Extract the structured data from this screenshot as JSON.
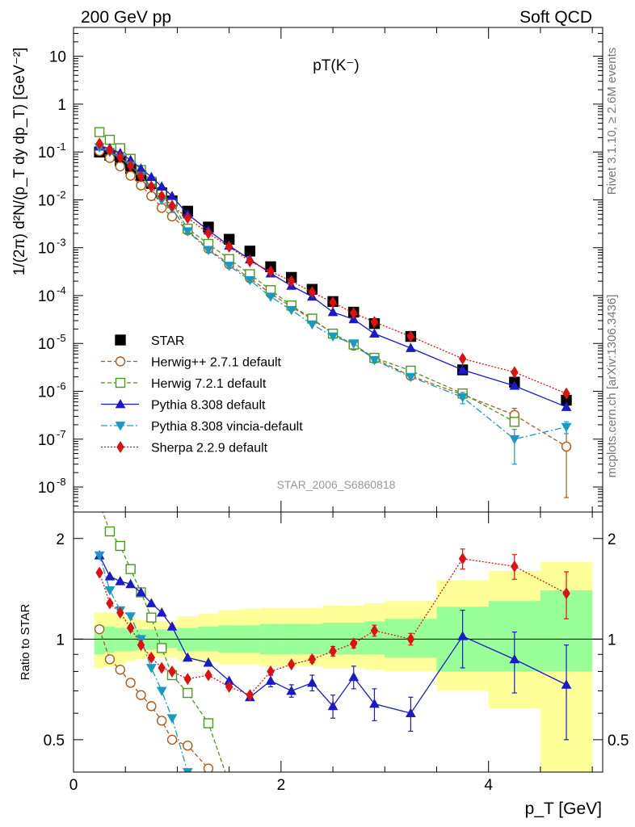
{
  "header": {
    "left": "200 GeV pp",
    "right": "Soft QCD",
    "rivet": "Rivet 3.1.10, ≥ 2.6M events",
    "mcplots": "mcplots.cern.ch [arXiv:1306.3436]",
    "analysis": "STAR_2006_S6860818"
  },
  "chart_data": [
    {
      "type": "scatter",
      "title": "pT(K⁻)",
      "xlabel": "p_T [GeV]",
      "ylabel": "1/(2π) d²N/(p_T dy dp_T) [GeV⁻²]",
      "yscale": "log",
      "xlim": [
        0,
        5.1
      ],
      "ylim": [
        3e-09,
        40
      ],
      "grid": false,
      "legend_position": "bottom-left",
      "x": [
        0.25,
        0.35,
        0.45,
        0.55,
        0.65,
        0.75,
        0.85,
        0.95,
        1.1,
        1.3,
        1.5,
        1.7,
        1.9,
        2.1,
        2.3,
        2.5,
        2.7,
        2.9,
        3.25,
        3.75,
        4.25,
        4.75
      ],
      "series": [
        {
          "name": "STAR",
          "color": "#000000",
          "marker": "square-filled",
          "values": [
            0.1,
            0.085,
            0.065,
            0.045,
            0.032,
            0.022,
            0.014,
            0.0095,
            0.0058,
            0.0027,
            0.0015,
            0.00085,
            0.0004,
            0.00024,
            0.000135,
            7.5e-05,
            4.5e-05,
            2.6e-05,
            1.4e-05,
            2.8e-06,
            1.55e-06,
            6.5e-07
          ]
        },
        {
          "name": "Herwig++ 2.7.1 default",
          "color": "#b05a1a",
          "marker": "circle-open",
          "dash": "5,3",
          "values": [
            0.105,
            0.075,
            0.05,
            0.032,
            0.02,
            0.012,
            0.0068,
            0.0045,
            0.0023,
            0.00095,
            0.00045,
            0.00023,
            0.00011,
            5.8e-05,
            3.2e-05,
            1.6e-05,
            9e-06,
            4.8e-06,
            2.1e-06,
            8.5e-07,
            3.2e-07,
            7e-08
          ],
          "err_low": [
            0,
            0,
            0,
            0,
            0,
            0,
            0,
            0,
            0,
            0,
            0,
            0,
            0,
            0,
            0,
            0,
            0,
            0,
            0,
            1.5e-07,
            8e-08,
            6.4e-08
          ],
          "err_high": [
            0,
            0,
            0,
            0,
            0,
            0,
            0,
            0,
            0,
            0,
            0,
            0,
            0,
            0,
            0,
            0,
            0,
            0,
            0,
            1.5e-07,
            1.2e-07,
            1.2e-07
          ]
        },
        {
          "name": "Herwig 7.2.1 default",
          "color": "#4c9a1c",
          "marker": "square-open",
          "dash": "5,3",
          "values": [
            0.26,
            0.18,
            0.12,
            0.072,
            0.042,
            0.024,
            0.013,
            0.0085,
            0.0025,
            0.0012,
            0.00058,
            0.00028,
            0.00013,
            6.2e-05,
            3.3e-05,
            1.6e-05,
            9.5e-06,
            5e-06,
            2.7e-06,
            9e-07,
            2.3e-07,
            0
          ]
        },
        {
          "name": "Pythia 8.308 default",
          "color": "#1a1acc",
          "marker": "triangle-up-filled",
          "dash": "",
          "values": [
            0.13,
            0.12,
            0.095,
            0.068,
            0.045,
            0.03,
            0.019,
            0.012,
            0.005,
            0.0023,
            0.0011,
            0.00057,
            0.00029,
            0.00016,
            9.5e-05,
            4.5e-05,
            3.2e-05,
            1.6e-05,
            8e-06,
            2.8e-06,
            1.3e-06,
            4.7e-07
          ]
        },
        {
          "name": "Pythia 8.308 vincia-default",
          "color": "#1a9ac0",
          "marker": "triangle-down-filled",
          "dash": "8,3,2,3",
          "values": [
            0.125,
            0.1,
            0.075,
            0.052,
            0.032,
            0.018,
            0.01,
            0.0066,
            0.0022,
            0.0009,
            0.00042,
            0.00021,
            9.5e-05,
            5e-05,
            2.5e-05,
            1.4e-05,
            1e-05,
            4.5e-06,
            2e-06,
            7.5e-07,
            1e-07,
            1.8e-07
          ],
          "err_low": [
            0,
            0,
            0,
            0,
            0,
            0,
            0,
            0,
            0,
            0,
            0,
            0,
            0,
            0,
            0,
            0,
            0,
            0,
            0,
            2e-07,
            7e-08,
            5e-08
          ],
          "err_high": [
            0,
            0,
            0,
            0,
            0,
            0,
            0,
            0,
            0,
            0,
            0,
            0,
            0,
            0,
            0,
            0,
            0,
            0,
            0,
            2e-07,
            6e-08,
            5e-08
          ]
        },
        {
          "name": "Sherpa 2.2.9 default",
          "color": "#e01010",
          "marker": "diamond-filled",
          "dash": "2,2",
          "values": [
            0.15,
            0.11,
            0.078,
            0.052,
            0.031,
            0.019,
            0.012,
            0.0075,
            0.0042,
            0.002,
            0.00105,
            0.00052,
            0.00032,
            0.0002,
            0.000118,
            7.2e-05,
            4.3e-05,
            2.8e-05,
            1.4e-05,
            4.8e-06,
            2.5e-06,
            9e-07
          ]
        }
      ]
    },
    {
      "type": "scatter",
      "ylabel": "Ratio to STAR",
      "xlabel": "p_T [GeV]",
      "yscale": "log",
      "xlim": [
        0,
        5.1
      ],
      "ylim": [
        0.4,
        2.4
      ],
      "reference": 1,
      "x": [
        0.25,
        0.35,
        0.45,
        0.55,
        0.65,
        0.75,
        0.85,
        0.95,
        1.1,
        1.3,
        1.5,
        1.7,
        1.9,
        2.1,
        2.3,
        2.5,
        2.7,
        2.9,
        3.25,
        3.75,
        4.25,
        4.75
      ],
      "bin_edges": [
        0.2,
        0.3,
        0.4,
        0.5,
        0.6,
        0.7,
        0.8,
        0.9,
        1.0,
        1.2,
        1.4,
        1.6,
        1.8,
        2.0,
        2.2,
        2.4,
        2.6,
        2.8,
        3.0,
        3.5,
        4.0,
        4.5,
        5.0
      ],
      "band_stat": [
        [
          0.9,
          1.1
        ],
        [
          0.91,
          1.09
        ],
        [
          0.92,
          1.08
        ],
        [
          0.92,
          1.08
        ],
        [
          0.93,
          1.07
        ],
        [
          0.93,
          1.07
        ],
        [
          0.93,
          1.07
        ],
        [
          0.94,
          1.06
        ],
        [
          0.92,
          1.08
        ],
        [
          0.92,
          1.09
        ],
        [
          0.91,
          1.1
        ],
        [
          0.91,
          1.1
        ],
        [
          0.9,
          1.11
        ],
        [
          0.9,
          1.11
        ],
        [
          0.9,
          1.11
        ],
        [
          0.9,
          1.12
        ],
        [
          0.9,
          1.12
        ],
        [
          0.9,
          1.13
        ],
        [
          0.88,
          1.15
        ],
        [
          0.8,
          1.25
        ],
        [
          0.8,
          1.3
        ],
        [
          0.8,
          1.4
        ]
      ],
      "band_syst": [
        [
          0.82,
          1.2
        ],
        [
          0.83,
          1.2
        ],
        [
          0.84,
          1.18
        ],
        [
          0.86,
          1.16
        ],
        [
          0.87,
          1.14
        ],
        [
          0.88,
          1.13
        ],
        [
          0.88,
          1.13
        ],
        [
          0.88,
          1.13
        ],
        [
          0.86,
          1.17
        ],
        [
          0.85,
          1.19
        ],
        [
          0.84,
          1.22
        ],
        [
          0.84,
          1.23
        ],
        [
          0.83,
          1.24
        ],
        [
          0.83,
          1.24
        ],
        [
          0.83,
          1.24
        ],
        [
          0.82,
          1.26
        ],
        [
          0.82,
          1.26
        ],
        [
          0.81,
          1.28
        ],
        [
          0.8,
          1.3
        ],
        [
          0.7,
          1.5
        ],
        [
          0.62,
          1.6
        ],
        [
          0.35,
          1.7
        ]
      ],
      "series": [
        {
          "name": "Herwig++ 2.7.1 default",
          "color": "#b05a1a",
          "marker": "circle-open",
          "dash": "5,3",
          "values": [
            1.07,
            0.87,
            0.81,
            0.74,
            0.68,
            0.63,
            0.57,
            0.5,
            0.48,
            0.41
          ]
        },
        {
          "name": "Herwig 7.2.1 default",
          "color": "#4c9a1c",
          "marker": "square-open",
          "dash": "5,3",
          "values": [
            2.55,
            2.1,
            1.9,
            1.62,
            1.38,
            1.16,
            0.94,
            0.78,
            0.69,
            0.56,
            0.37
          ]
        },
        {
          "name": "Pythia 8.308 default",
          "color": "#1a1acc",
          "marker": "triangle-up-filled",
          "dash": "",
          "values": [
            1.78,
            1.54,
            1.49,
            1.46,
            1.38,
            1.28,
            1.2,
            1.09,
            0.88,
            0.85,
            0.75,
            0.67,
            0.75,
            0.7,
            0.74,
            0.63,
            0.77,
            0.64,
            0.6,
            1.02,
            0.87,
            0.73
          ],
          "err": [
            0,
            0,
            0,
            0,
            0,
            0,
            0,
            0,
            0,
            0,
            0,
            0,
            0.03,
            0.03,
            0.04,
            0.05,
            0.06,
            0.07,
            0.07,
            0.2,
            0.18,
            0.23
          ]
        },
        {
          "name": "Pythia 8.308 vincia-default",
          "color": "#1a9ac0",
          "marker": "triangle-down-filled",
          "dash": "8,3,2,3",
          "values": [
            1.78,
            1.4,
            1.22,
            1.17,
            1.0,
            0.82,
            0.7,
            0.58,
            0.4
          ]
        },
        {
          "name": "Sherpa 2.2.9 default",
          "color": "#e01010",
          "marker": "diamond-filled",
          "dash": "2,2",
          "values": [
            1.58,
            1.28,
            1.2,
            1.08,
            0.96,
            0.88,
            0.82,
            0.8,
            0.76,
            0.78,
            0.72,
            0.68,
            0.8,
            0.84,
            0.87,
            0.92,
            0.97,
            1.06,
            1.0,
            1.74,
            1.65,
            1.37
          ],
          "err": [
            0,
            0,
            0,
            0,
            0,
            0,
            0,
            0,
            0,
            0,
            0,
            0,
            0,
            0,
            0.02,
            0.03,
            0.03,
            0.04,
            0.04,
            0.12,
            0.14,
            0.22
          ]
        }
      ]
    }
  ]
}
